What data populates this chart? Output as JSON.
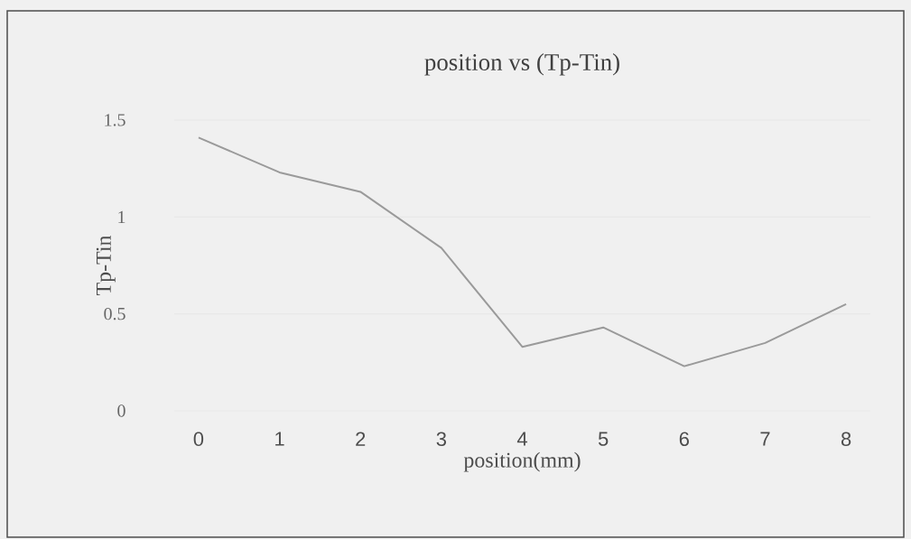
{
  "chart_data": {
    "type": "line",
    "title": "position vs (Tp-Tin)",
    "xlabel": "position(mm)",
    "ylabel": "Tp-Tin",
    "x": [
      0,
      1,
      2,
      3,
      4,
      5,
      6,
      7,
      8
    ],
    "series": [
      {
        "color": "#9a9a9a",
        "values": [
          1.41,
          1.23,
          1.13,
          0.84,
          0.33,
          0.43,
          0.23,
          0.35,
          0.55
        ]
      }
    ],
    "xlim": [
      -0.3,
      8.3
    ],
    "xticks": [
      0,
      1,
      2,
      3,
      4,
      5,
      6,
      7,
      8
    ],
    "ylim": [
      0,
      1.5
    ],
    "yticks": [
      0,
      0.5,
      1,
      1.5
    ],
    "grid": "y",
    "legend": false,
    "marker": "none",
    "line_style": "solid"
  }
}
